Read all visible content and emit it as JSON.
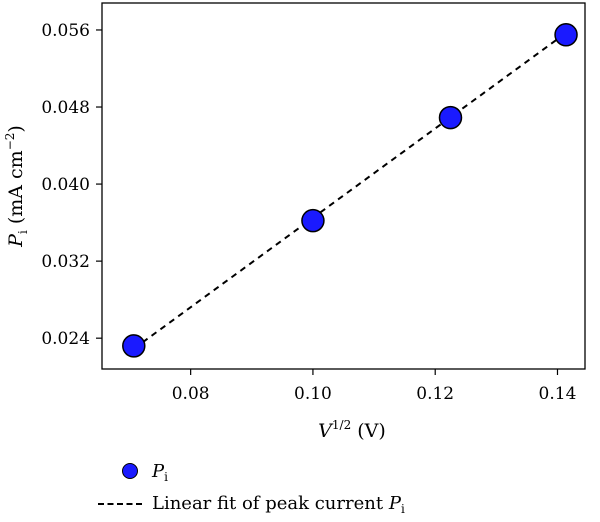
{
  "chart_data": {
    "type": "scatter",
    "title": "",
    "xlabel": {
      "main": "V",
      "sup": "1/2",
      "unit": " (V)"
    },
    "ylabel": {
      "main": "P",
      "sub": "i",
      "unit": " (mA cm",
      "sup": "−2",
      "close": ")"
    },
    "xlim": [
      0.0655,
      0.1445
    ],
    "ylim": [
      0.0208,
      0.0588
    ],
    "xticks": [
      0.08,
      0.1,
      0.12,
      0.14
    ],
    "xtick_labels": [
      "0.08",
      "0.10",
      "0.12",
      "0.14"
    ],
    "yticks": [
      0.024,
      0.032,
      0.04,
      0.048,
      0.056
    ],
    "ytick_labels": [
      "0.024",
      "0.032",
      "0.040",
      "0.048",
      "0.056"
    ],
    "grid": false,
    "legend_position": "bottom-left, below plot",
    "series": [
      {
        "name": "P_i",
        "kind": "scatter",
        "color": "#1a1aff",
        "x": [
          0.0707,
          0.1,
          0.1225,
          0.1414
        ],
        "y": [
          0.0232,
          0.0362,
          0.0469,
          0.0555
        ]
      },
      {
        "name": "Linear fit of peak current P_i",
        "kind": "line",
        "style": "dashed",
        "color": "#000000",
        "x": [
          0.0707,
          0.1414
        ],
        "y": [
          0.0229,
          0.0557
        ]
      }
    ]
  },
  "legend": {
    "items": [
      {
        "text": "",
        "var": "P",
        "sub": "i"
      },
      {
        "text": "Linear fit of peak current ",
        "var": "P",
        "sub": "i"
      }
    ]
  }
}
